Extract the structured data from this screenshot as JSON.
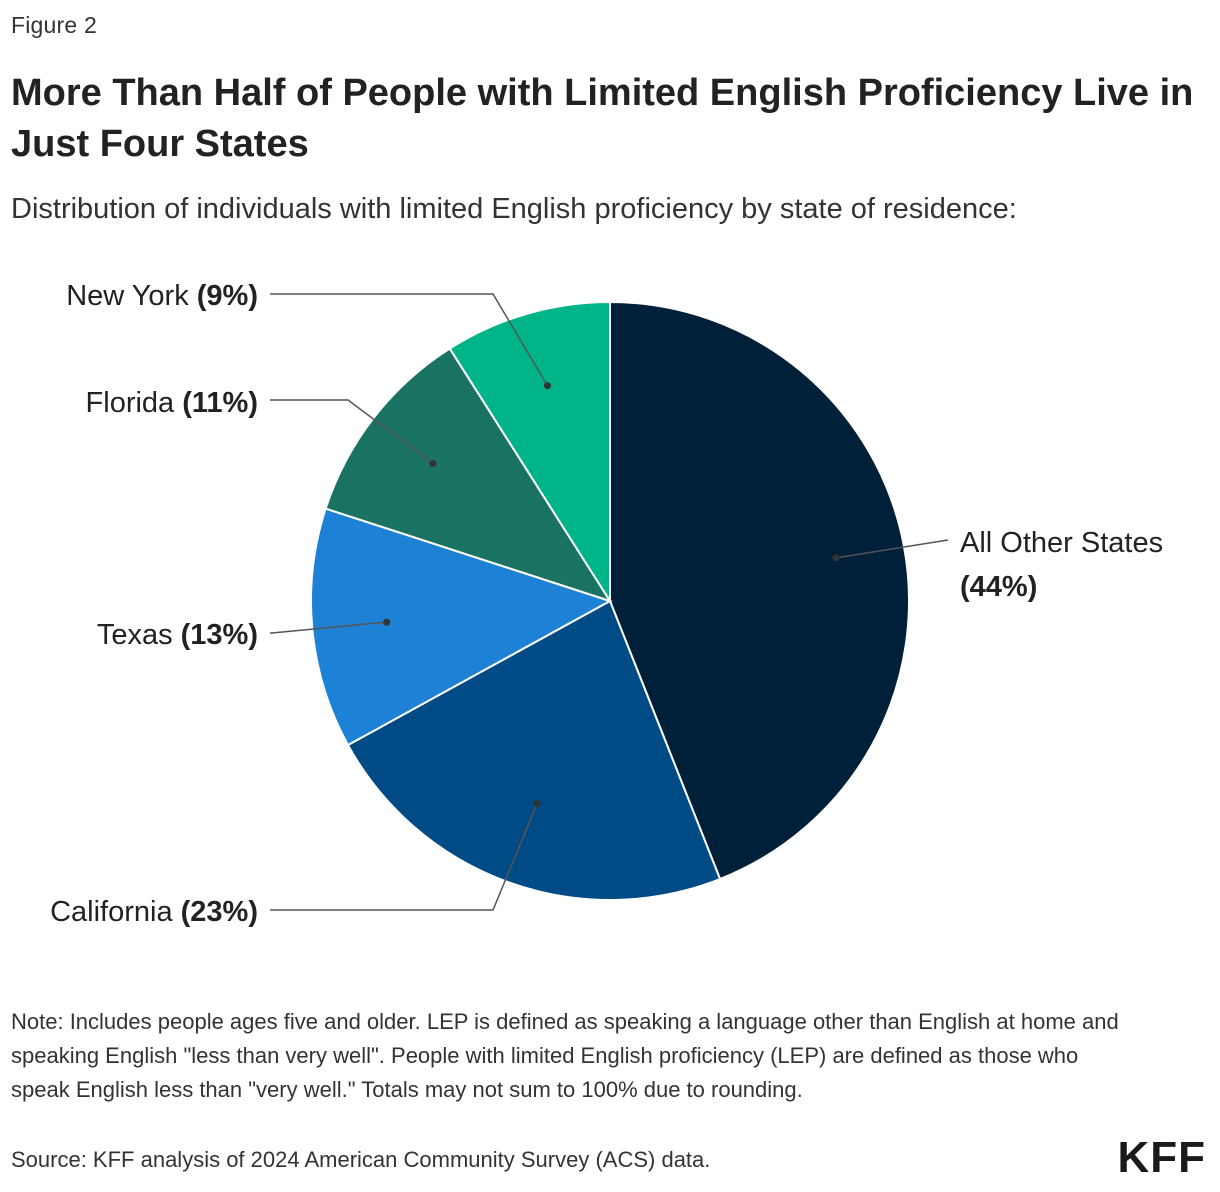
{
  "figure_label": "Figure 2",
  "title": "More Than Half of People with Limited English Proficiency Live in Just Four States",
  "subtitle": "Distribution of individuals with limited English proficiency by state of residence:",
  "note": "Note: Includes people ages five and older. LEP is defined as speaking a language other than English at home and speaking English \"less than very well\". People with limited English proficiency (LEP) are defined as those who speak English less than \"very well.\" Totals may not sum to 100% due to rounding.",
  "source": "Source: KFF analysis of 2024 American Community Survey (ACS) data.",
  "logo": "KFF",
  "chart_data": {
    "type": "pie",
    "title": "More Than Half of People with Limited English Proficiency Live in Just Four States",
    "start": "12 o'clock",
    "direction": "clockwise",
    "slices": [
      {
        "label": "All Other States",
        "value": 44,
        "display": "(44%)",
        "color": "#00203a"
      },
      {
        "label": "California",
        "value": 23,
        "display": "(23%)",
        "color": "#004a85"
      },
      {
        "label": "Texas",
        "value": 13,
        "display": "(13%)",
        "color": "#1d81d6"
      },
      {
        "label": "Florida",
        "value": 11,
        "display": "(11%)",
        "color": "#1a7362"
      },
      {
        "label": "New York",
        "value": 9,
        "display": "(9%)",
        "color": "#00b489"
      }
    ]
  }
}
